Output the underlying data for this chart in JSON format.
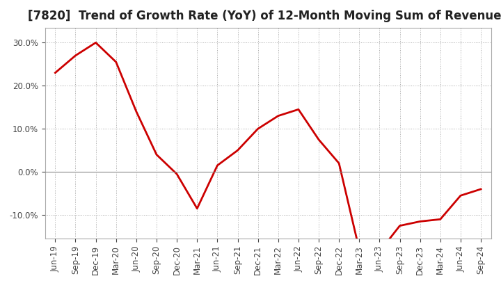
{
  "title": "[7820]  Trend of Growth Rate (YoY) of 12-Month Moving Sum of Revenues",
  "x_labels": [
    "Jun-19",
    "Sep-19",
    "Dec-19",
    "Mar-20",
    "Jun-20",
    "Sep-20",
    "Dec-20",
    "Mar-21",
    "Jun-21",
    "Sep-21",
    "Dec-21",
    "Mar-22",
    "Jun-22",
    "Sep-22",
    "Dec-22",
    "Mar-23",
    "Jun-23",
    "Sep-23",
    "Dec-23",
    "Mar-24",
    "Jun-24",
    "Sep-24"
  ],
  "y_values": [
    0.23,
    0.27,
    0.3,
    0.255,
    0.14,
    0.04,
    -0.005,
    -0.085,
    0.015,
    0.05,
    0.1,
    0.13,
    0.145,
    0.075,
    0.02,
    -0.18,
    -0.185,
    -0.125,
    -0.115,
    -0.11,
    -0.055,
    -0.04
  ],
  "line_color": "#cc0000",
  "line_width": 2.0,
  "ylim": [
    -0.155,
    0.335
  ],
  "yticks": [
    -0.1,
    0.0,
    0.1,
    0.2,
    0.3
  ],
  "background_color": "#ffffff",
  "plot_bg_color": "#ffffff",
  "grid_color": "#aaaaaa",
  "title_fontsize": 12,
  "tick_fontsize": 8.5
}
